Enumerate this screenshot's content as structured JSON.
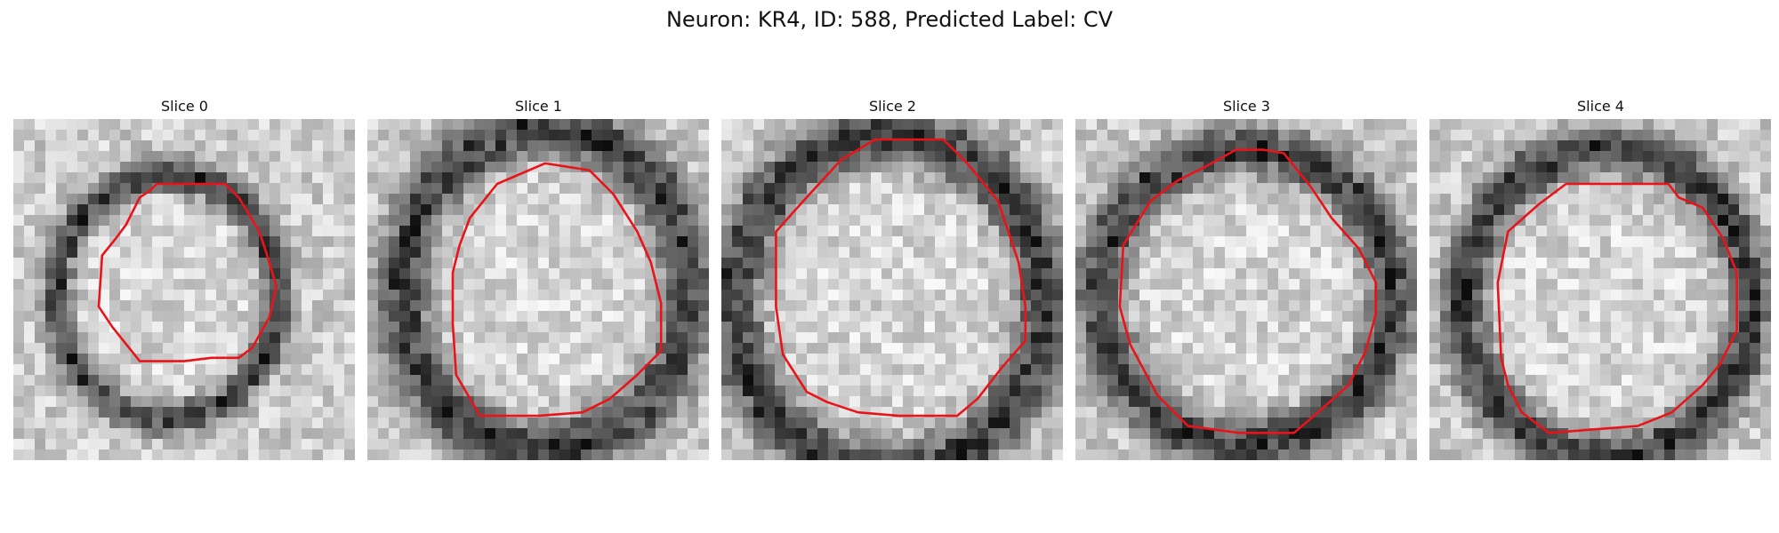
{
  "figure": {
    "title": "Neuron: KR4, ID: 588, Predicted Label: CV",
    "contour_color": "#e8141a",
    "panels": [
      {
        "title": "Slice 0",
        "seed": 11,
        "ring": [
          0.45,
          0.52,
          0.31,
          0.34,
          0.11
        ],
        "outline": [
          [
            0.42,
            0.19
          ],
          [
            0.62,
            0.19
          ],
          [
            0.66,
            0.23
          ],
          [
            0.72,
            0.33
          ],
          [
            0.74,
            0.39
          ],
          [
            0.77,
            0.49
          ],
          [
            0.75,
            0.58
          ],
          [
            0.7,
            0.67
          ],
          [
            0.66,
            0.7
          ],
          [
            0.58,
            0.7
          ],
          [
            0.5,
            0.71
          ],
          [
            0.37,
            0.71
          ],
          [
            0.29,
            0.61
          ],
          [
            0.25,
            0.55
          ],
          [
            0.26,
            0.4
          ],
          [
            0.3,
            0.35
          ],
          [
            0.33,
            0.31
          ],
          [
            0.37,
            0.23
          ],
          [
            0.4,
            0.21
          ]
        ]
      },
      {
        "title": "Slice 1",
        "seed": 23,
        "ring": [
          0.52,
          0.5,
          0.4,
          0.45,
          0.15
        ],
        "outline": [
          [
            0.38,
            0.19
          ],
          [
            0.52,
            0.13
          ],
          [
            0.65,
            0.15
          ],
          [
            0.72,
            0.22
          ],
          [
            0.79,
            0.33
          ],
          [
            0.83,
            0.42
          ],
          [
            0.86,
            0.54
          ],
          [
            0.86,
            0.68
          ],
          [
            0.79,
            0.75
          ],
          [
            0.71,
            0.82
          ],
          [
            0.63,
            0.86
          ],
          [
            0.5,
            0.87
          ],
          [
            0.33,
            0.87
          ],
          [
            0.26,
            0.75
          ],
          [
            0.25,
            0.6
          ],
          [
            0.25,
            0.45
          ],
          [
            0.27,
            0.37
          ],
          [
            0.3,
            0.29
          ]
        ]
      },
      {
        "title": "Slice 2",
        "seed": 37,
        "ring": [
          0.49,
          0.54,
          0.43,
          0.47,
          0.14
        ],
        "outline": [
          [
            0.45,
            0.06
          ],
          [
            0.65,
            0.06
          ],
          [
            0.72,
            0.13
          ],
          [
            0.81,
            0.24
          ],
          [
            0.84,
            0.33
          ],
          [
            0.87,
            0.42
          ],
          [
            0.89,
            0.55
          ],
          [
            0.89,
            0.65
          ],
          [
            0.82,
            0.73
          ],
          [
            0.75,
            0.82
          ],
          [
            0.69,
            0.87
          ],
          [
            0.65,
            0.87
          ],
          [
            0.52,
            0.87
          ],
          [
            0.4,
            0.86
          ],
          [
            0.31,
            0.83
          ],
          [
            0.25,
            0.8
          ],
          [
            0.18,
            0.69
          ],
          [
            0.16,
            0.55
          ],
          [
            0.16,
            0.33
          ],
          [
            0.24,
            0.24
          ],
          [
            0.35,
            0.12
          ]
        ]
      },
      {
        "title": "Slice 3",
        "seed": 53,
        "ring": [
          0.5,
          0.52,
          0.41,
          0.41,
          0.14
        ],
        "outline": [
          [
            0.38,
            0.14
          ],
          [
            0.47,
            0.09
          ],
          [
            0.55,
            0.09
          ],
          [
            0.61,
            0.1
          ],
          [
            0.69,
            0.2
          ],
          [
            0.75,
            0.29
          ],
          [
            0.83,
            0.38
          ],
          [
            0.88,
            0.48
          ],
          [
            0.88,
            0.57
          ],
          [
            0.85,
            0.68
          ],
          [
            0.8,
            0.78
          ],
          [
            0.71,
            0.86
          ],
          [
            0.64,
            0.92
          ],
          [
            0.48,
            0.92
          ],
          [
            0.33,
            0.9
          ],
          [
            0.24,
            0.81
          ],
          [
            0.16,
            0.66
          ],
          [
            0.13,
            0.55
          ],
          [
            0.14,
            0.37
          ],
          [
            0.22,
            0.24
          ],
          [
            0.3,
            0.18
          ]
        ]
      },
      {
        "title": "Slice 4",
        "seed": 71,
        "ring": [
          0.52,
          0.54,
          0.4,
          0.43,
          0.13
        ],
        "outline": [
          [
            0.4,
            0.19
          ],
          [
            0.7,
            0.19
          ],
          [
            0.73,
            0.23
          ],
          [
            0.8,
            0.26
          ],
          [
            0.86,
            0.35
          ],
          [
            0.9,
            0.45
          ],
          [
            0.9,
            0.62
          ],
          [
            0.85,
            0.72
          ],
          [
            0.8,
            0.78
          ],
          [
            0.71,
            0.86
          ],
          [
            0.61,
            0.9
          ],
          [
            0.35,
            0.92
          ],
          [
            0.27,
            0.86
          ],
          [
            0.23,
            0.78
          ],
          [
            0.21,
            0.7
          ],
          [
            0.2,
            0.48
          ],
          [
            0.23,
            0.33
          ],
          [
            0.32,
            0.25
          ]
        ]
      }
    ]
  }
}
